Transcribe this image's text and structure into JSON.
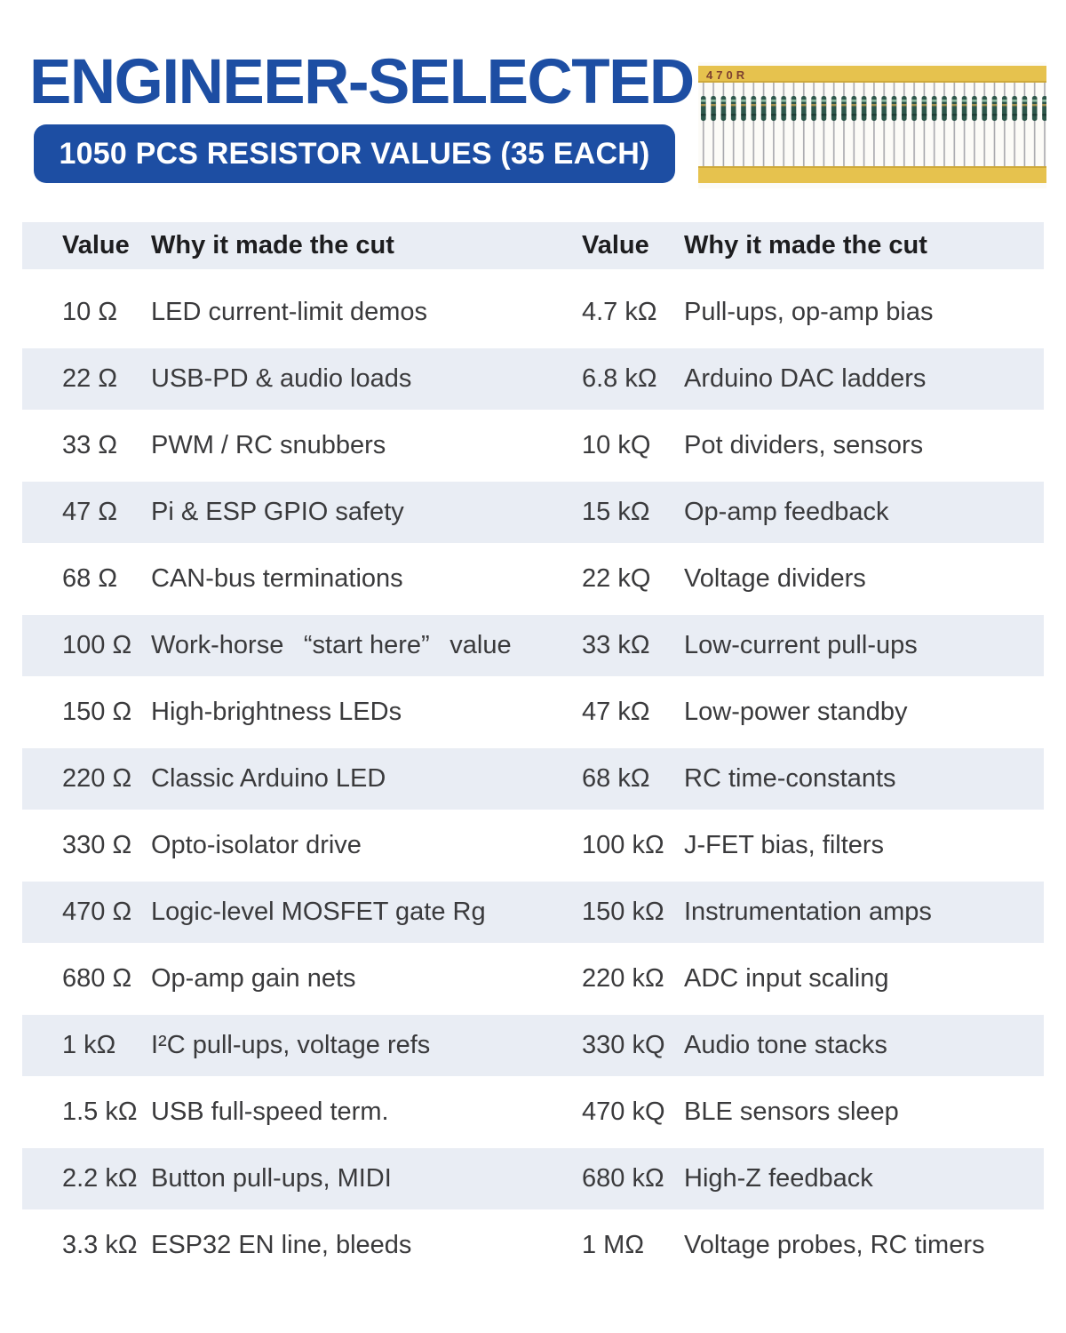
{
  "header": {
    "title": "ENGINEER-SELECTED",
    "banner": "1050 PCS RESISTOR VALUES (35 EACH)",
    "strip_label": "470R"
  },
  "colors": {
    "brand_blue": "#1d4ea3",
    "row_stripe": "#e9edf4",
    "tape_yellow": "#e6c24e",
    "tape_edge": "#cfa93a",
    "resistor_body": "#2d564a",
    "wire_gray": "#a8a8ad",
    "body_text": "#3a3a3c"
  },
  "table": {
    "columns": [
      "Value",
      "Why it made the cut",
      "Value",
      "Why it made the cut"
    ],
    "rows": [
      [
        "10 Ω",
        "LED current-limit demos",
        "4.7 kΩ",
        "Pull-ups, op-amp bias"
      ],
      [
        "22 Ω",
        "USB-PD & audio loads",
        "6.8 kΩ",
        "Arduino DAC ladders"
      ],
      [
        "33 Ω",
        "PWM / RC snubbers",
        "10 kQ",
        "Pot dividers, sensors"
      ],
      [
        "47 Ω",
        "Pi & ESP GPIO safety",
        "15 kΩ",
        "Op-amp feedback"
      ],
      [
        "68 Ω",
        "CAN-bus terminations",
        "22 kQ",
        "Voltage dividers"
      ],
      [
        "100 Ω",
        "Work-horse  “start here”  value",
        "33 kΩ",
        "Low-current pull-ups"
      ],
      [
        "150 Ω",
        "High-brightness LEDs",
        "47 kΩ",
        "Low-power standby"
      ],
      [
        "220 Ω",
        "Classic Arduino LED",
        "68 kΩ",
        "RC time-constants"
      ],
      [
        "330 Ω",
        "Opto-isolator drive",
        "100 kΩ",
        "J-FET bias, filters"
      ],
      [
        "470 Ω",
        "Logic-level MOSFET gate Rg",
        "150 kΩ",
        "Instrumentation amps"
      ],
      [
        "680 Ω",
        "Op-amp gain nets",
        "220 kΩ",
        "ADC input scaling"
      ],
      [
        "1 kΩ",
        "I²C pull-ups, voltage refs",
        "330 kQ",
        "Audio tone stacks"
      ],
      [
        "1.5 kΩ",
        "USB full-speed term.",
        "470 kQ",
        "BLE sensors sleep"
      ],
      [
        "2.2 kΩ",
        "Button pull-ups, MIDI",
        "680 kΩ",
        "High-Z feedback"
      ],
      [
        "3.3 kΩ",
        "ESP32 EN line, bleeds",
        "1 MΩ",
        "Voltage probes, RC timers"
      ]
    ]
  }
}
